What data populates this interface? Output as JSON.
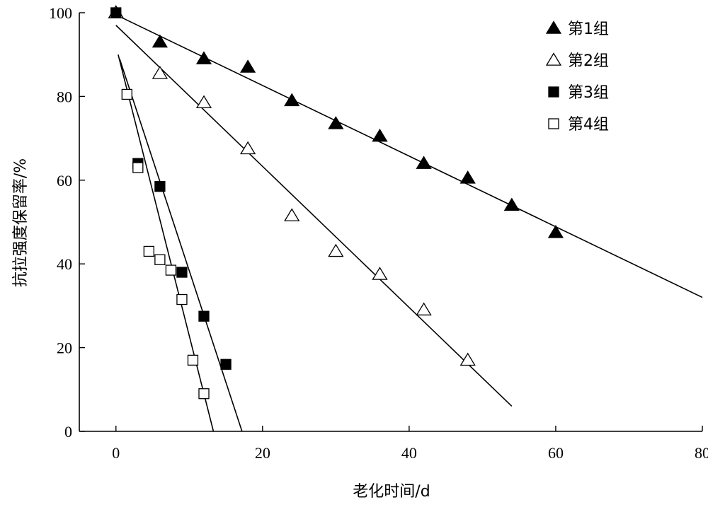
{
  "chart_data": {
    "type": "scatter",
    "title": "",
    "xlabel": "老化时间/d",
    "ylabel": "抗拉强度保留率/%",
    "xlim": [
      -5,
      80
    ],
    "ylim": [
      0,
      100
    ],
    "xticks": [
      0,
      20,
      40,
      60,
      80
    ],
    "yticks": [
      0,
      20,
      40,
      60,
      80,
      100
    ],
    "grid": false,
    "legend_position": "top-right",
    "series": [
      {
        "name": "第1组",
        "marker": "filled-triangle",
        "x": [
          0,
          6,
          12,
          18,
          24,
          30,
          36,
          42,
          48,
          54,
          60
        ],
        "y": [
          100,
          93,
          89,
          87,
          79,
          73.5,
          70.5,
          64,
          60.5,
          54,
          47.5
        ],
        "fit": {
          "x": [
            0,
            80
          ],
          "y": [
            99.5,
            32
          ]
        }
      },
      {
        "name": "第2组",
        "marker": "open-triangle",
        "x": [
          0,
          6,
          12,
          18,
          24,
          30,
          36,
          42,
          48
        ],
        "y": [
          100,
          85.5,
          78.5,
          67.5,
          51.5,
          43,
          37.5,
          29,
          17
        ],
        "fit": {
          "x": [
            0,
            54
          ],
          "y": [
            97,
            6
          ]
        }
      },
      {
        "name": "第3组",
        "marker": "filled-square",
        "x": [
          0,
          3,
          6,
          9,
          12,
          15
        ],
        "y": [
          100,
          64,
          58.5,
          38,
          27.5,
          16
        ],
        "fit": {
          "x": [
            0.5,
            17.2
          ],
          "y": [
            89,
            0
          ]
        }
      },
      {
        "name": "第4组",
        "marker": "open-square",
        "x": [
          1.5,
          3,
          4.5,
          6,
          7.5,
          9,
          10.5,
          12
        ],
        "y": [
          80.5,
          63,
          43,
          41,
          38.5,
          31.5,
          17,
          9
        ],
        "fit": {
          "x": [
            0.3,
            13.3
          ],
          "y": [
            90,
            0
          ]
        }
      }
    ]
  }
}
